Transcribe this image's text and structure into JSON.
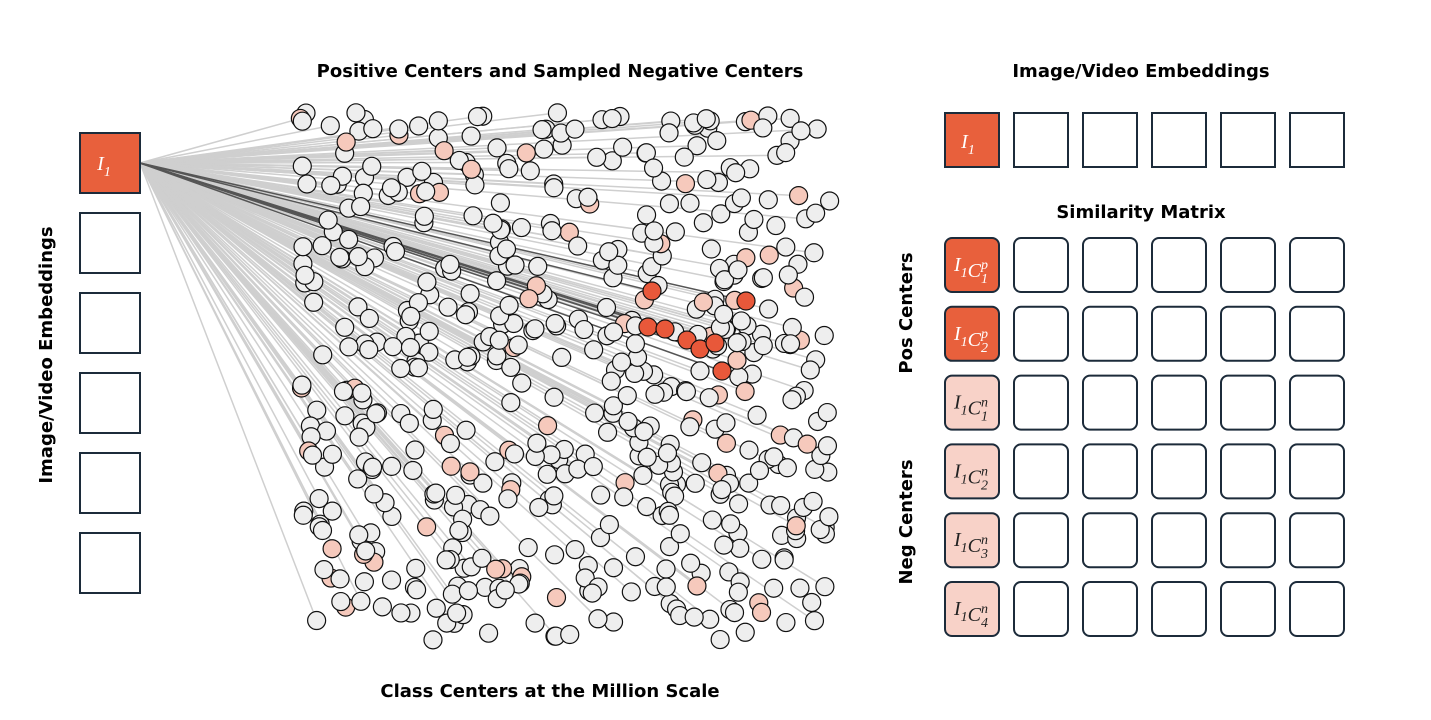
{
  "scatter": {
    "title": "Positive Centers and Sampled Negative Centers",
    "caption": "Class Centers at the Million Scale"
  },
  "left": {
    "axis_label": "Image/Video Embeddings",
    "first_cell": [
      {
        "base": "I",
        "sub": "1"
      }
    ]
  },
  "right": {
    "title": "Image/Video Embeddings",
    "first_cell": [
      {
        "base": "I",
        "sub": "1"
      }
    ],
    "matrix_title": "Similarity Matrix",
    "row_groups": [
      "Pos Centers",
      "Neg Centers"
    ],
    "row_labels": [
      [
        {
          "base": "I",
          "sub": "1"
        },
        {
          "base": "C",
          "sub": "1",
          "sup": "p"
        }
      ],
      [
        {
          "base": "I",
          "sub": "1"
        },
        {
          "base": "C",
          "sub": "2",
          "sup": "p"
        }
      ],
      [
        {
          "base": "I",
          "sub": "1"
        },
        {
          "base": "C",
          "sub": "1",
          "sup": "n"
        }
      ],
      [
        {
          "base": "I",
          "sub": "1"
        },
        {
          "base": "C",
          "sub": "2",
          "sup": "n"
        }
      ],
      [
        {
          "base": "I",
          "sub": "1"
        },
        {
          "base": "C",
          "sub": "3",
          "sup": "n"
        }
      ],
      [
        {
          "base": "I",
          "sub": "1"
        },
        {
          "base": "C",
          "sub": "4",
          "sup": "n"
        }
      ]
    ]
  }
}
